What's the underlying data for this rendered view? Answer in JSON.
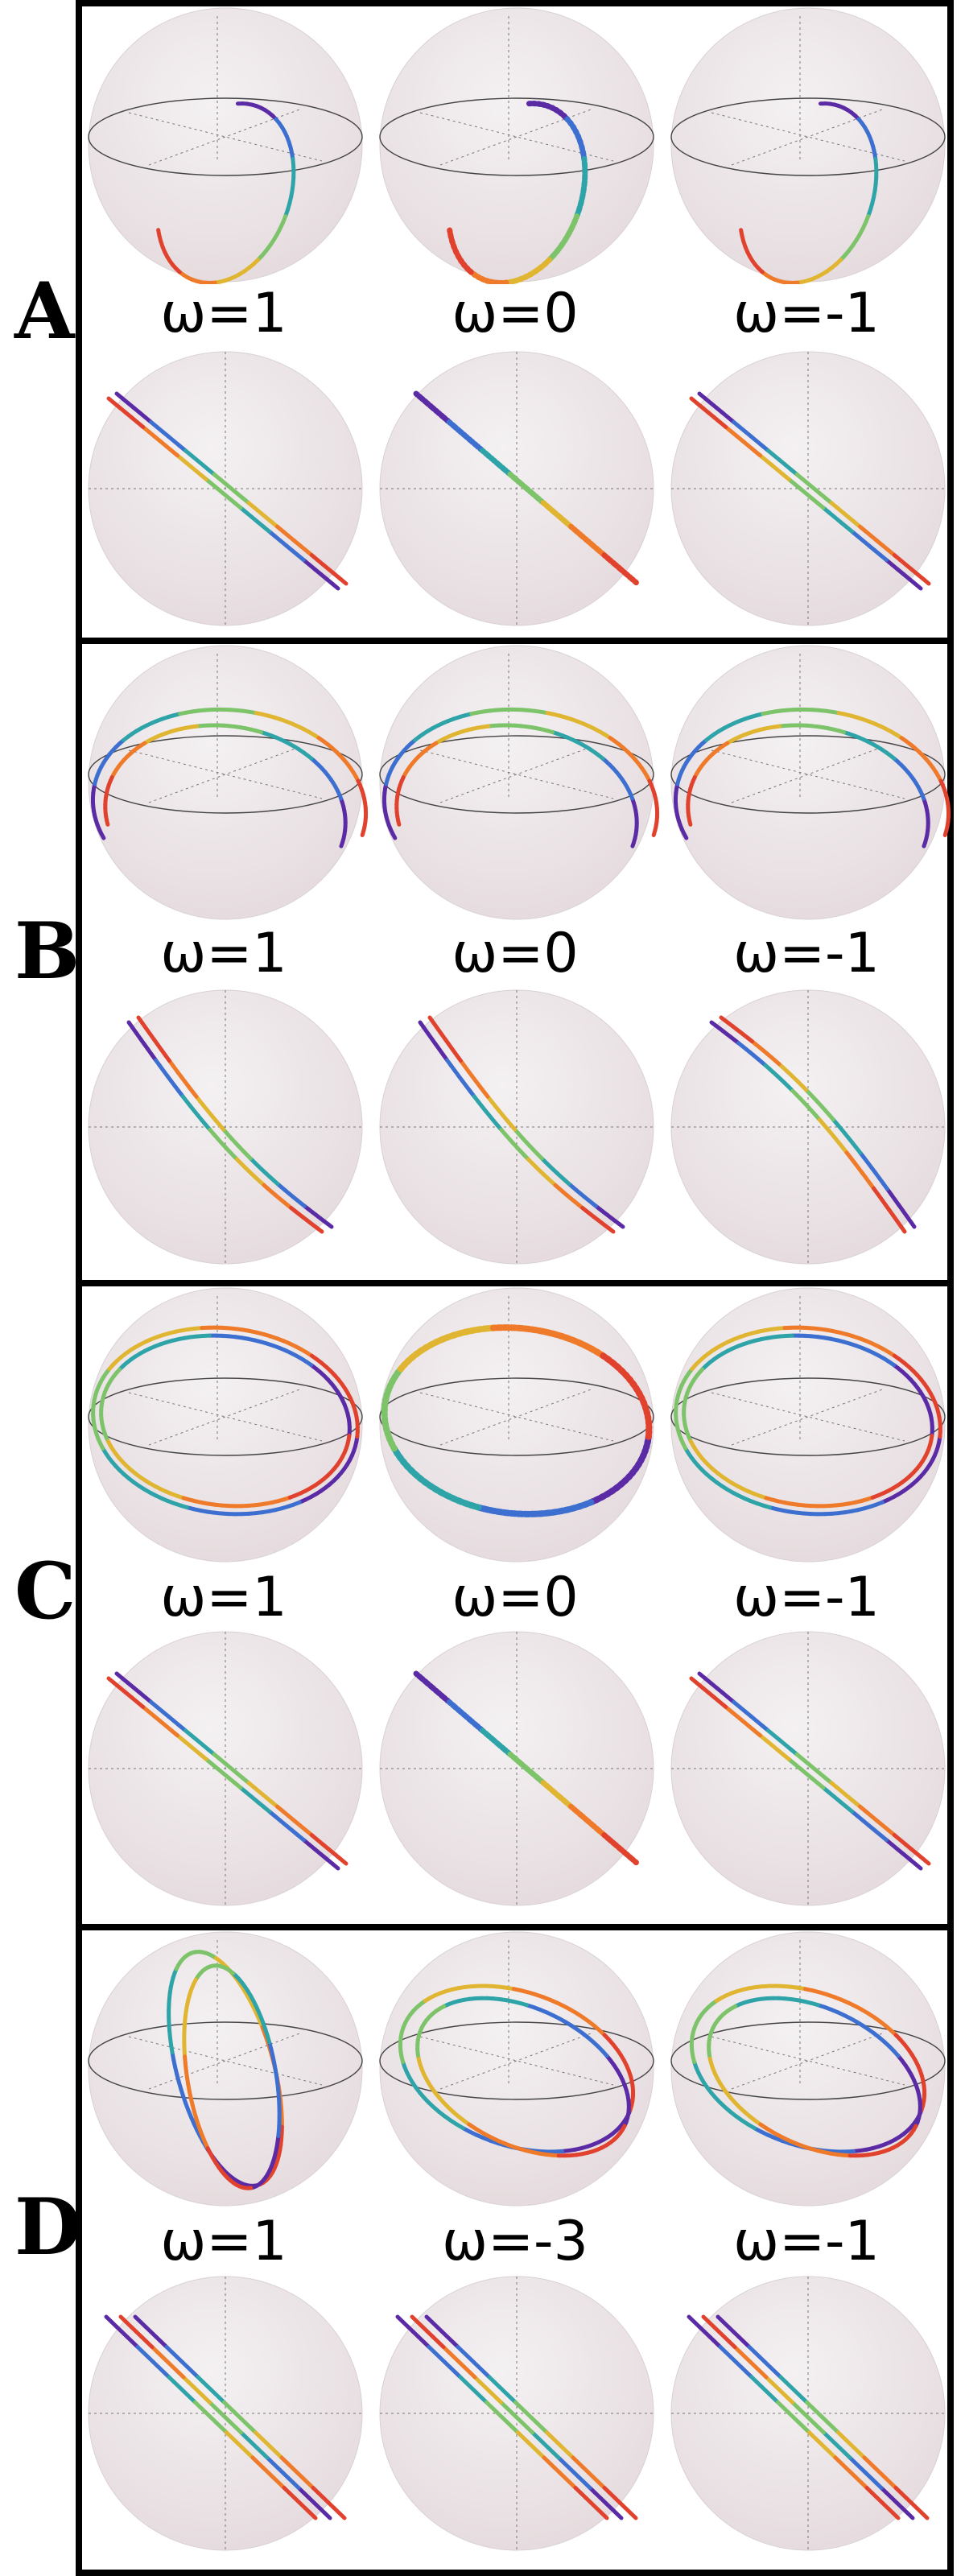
{
  "panels": [
    {
      "letter": "A",
      "labels": [
        "ω=1",
        "ω=0",
        "ω=-1"
      ]
    },
    {
      "letter": "B",
      "labels": [
        "ω=1",
        "ω=0",
        "ω=-1"
      ]
    },
    {
      "letter": "C",
      "labels": [
        "ω=1",
        "ω=0",
        "ω=-1"
      ]
    },
    {
      "letter": "D",
      "labels": [
        "ω=1",
        "ω=-3",
        "ω=-1"
      ]
    }
  ],
  "colors": [
    "#5b2aa5",
    "#3c6fd0",
    "#2ea4a8",
    "#7cc36a",
    "#e0b531",
    "#ee7a2a",
    "#e0422e"
  ]
}
